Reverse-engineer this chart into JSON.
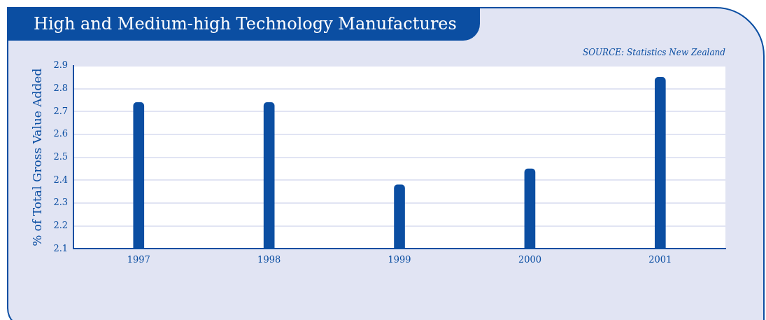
{
  "chart_data": {
    "type": "bar",
    "title": "High and Medium-high Technology Manufactures",
    "ylabel": "% of Total Gross Value Added",
    "annotations": [
      "SOURCE: Statistics New Zealand"
    ],
    "categories": [
      "1997",
      "1998",
      "1999",
      "2000",
      "2001"
    ],
    "values": [
      2.74,
      2.74,
      2.38,
      2.45,
      2.85
    ],
    "color": "#0b4ea2",
    "ylim": [
      2.1,
      2.9
    ],
    "yticks": [
      2.1,
      2.2,
      2.3,
      2.4,
      2.5,
      2.6,
      2.7,
      2.8,
      2.9
    ],
    "grid": "y"
  }
}
